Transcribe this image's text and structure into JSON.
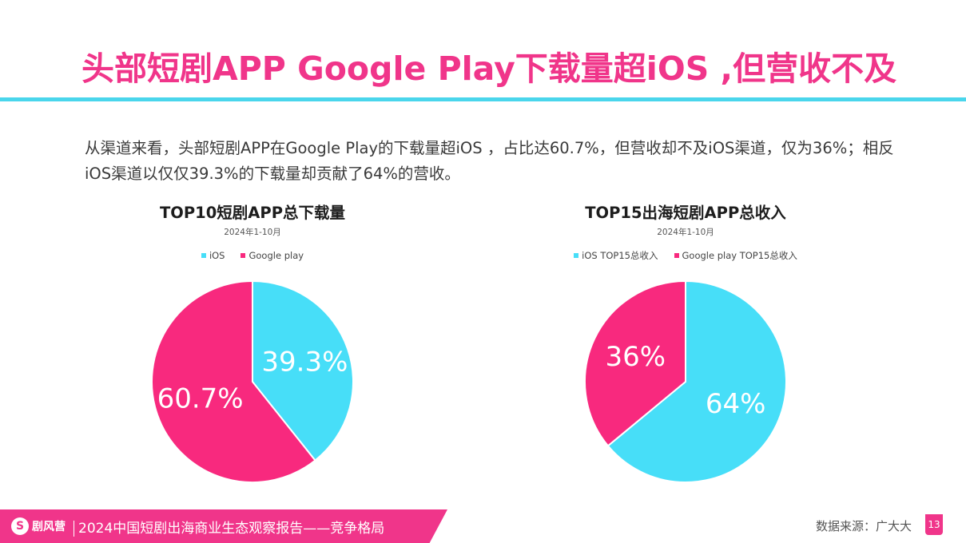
{
  "title": "头部短剧APP Google Play下载量超iOS ,但营收不及",
  "description": "从渠道来看，头部短剧APP在Google Play的下载量超iOS ，占比达60.7%，但营收却不及iOS渠道，仅为36%；相反iOS渠道以仅仅39.3%的下载量却贡献了64%的营收。",
  "colors": {
    "accent": "#f0358a",
    "ios": "#47def8",
    "google": "#f8297e",
    "rule": "#4ad6ec"
  },
  "chart_data": [
    {
      "type": "pie",
      "title": "TOP10短剧APP总下载量",
      "subtitle": "2024年1-10月",
      "series": [
        {
          "name": "iOS",
          "value": 39.3,
          "label": "39.3%",
          "color": "#47def8"
        },
        {
          "name": "Google play",
          "value": 60.7,
          "label": "60.7%",
          "color": "#f8297e"
        }
      ]
    },
    {
      "type": "pie",
      "title": "TOP15出海短剧APP总收入",
      "subtitle": "2024年1-10月",
      "series": [
        {
          "name": "iOS TOP15总收入",
          "value": 64,
          "label": "64%",
          "color": "#47def8"
        },
        {
          "name": "Google play TOP15总收入",
          "value": 36,
          "label": "36%",
          "color": "#f8297e"
        }
      ]
    }
  ],
  "footer": {
    "logo_mark": "S",
    "logo_text": "剧风营",
    "report_title": "2024中国短剧出海商业生态观察报告——竞争格局",
    "source": "数据来源：广大大",
    "page_number": "13"
  }
}
